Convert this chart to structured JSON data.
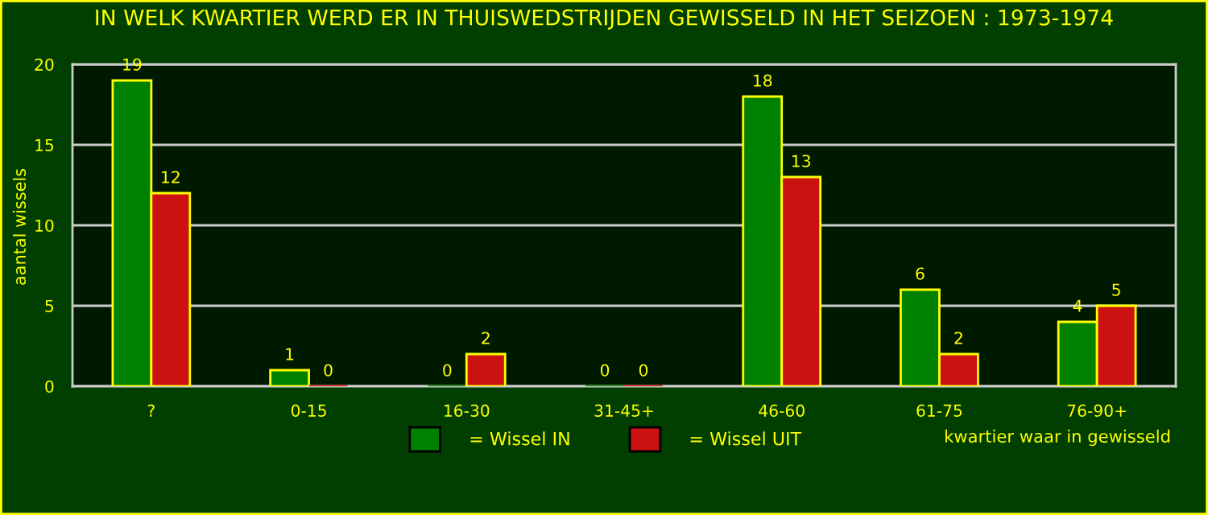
{
  "chart_data": {
    "type": "bar",
    "title": "IN WELK KWARTIER WERD ER IN THUISWEDSTRIJDEN GEWISSELD IN HET SEIZOEN : 1973-1974",
    "xlabel": "kwartier waar in gewisseld",
    "ylabel": "aantal wissels",
    "categories": [
      "?",
      "0-15",
      "16-30",
      "31-45+",
      "46-60",
      "61-75",
      "76-90+"
    ],
    "series": [
      {
        "name": "= Wissel IN",
        "color": "#008000",
        "values": [
          19,
          1,
          0,
          0,
          18,
          6,
          4
        ]
      },
      {
        "name": "= Wissel UIT",
        "color": "#cc1111",
        "values": [
          12,
          0,
          2,
          0,
          13,
          2,
          5
        ]
      }
    ],
    "ylim": [
      0,
      20
    ],
    "yticks": [
      0,
      5,
      10,
      15,
      20
    ],
    "grid": "y",
    "legend": "bottom",
    "data_labels": true
  }
}
